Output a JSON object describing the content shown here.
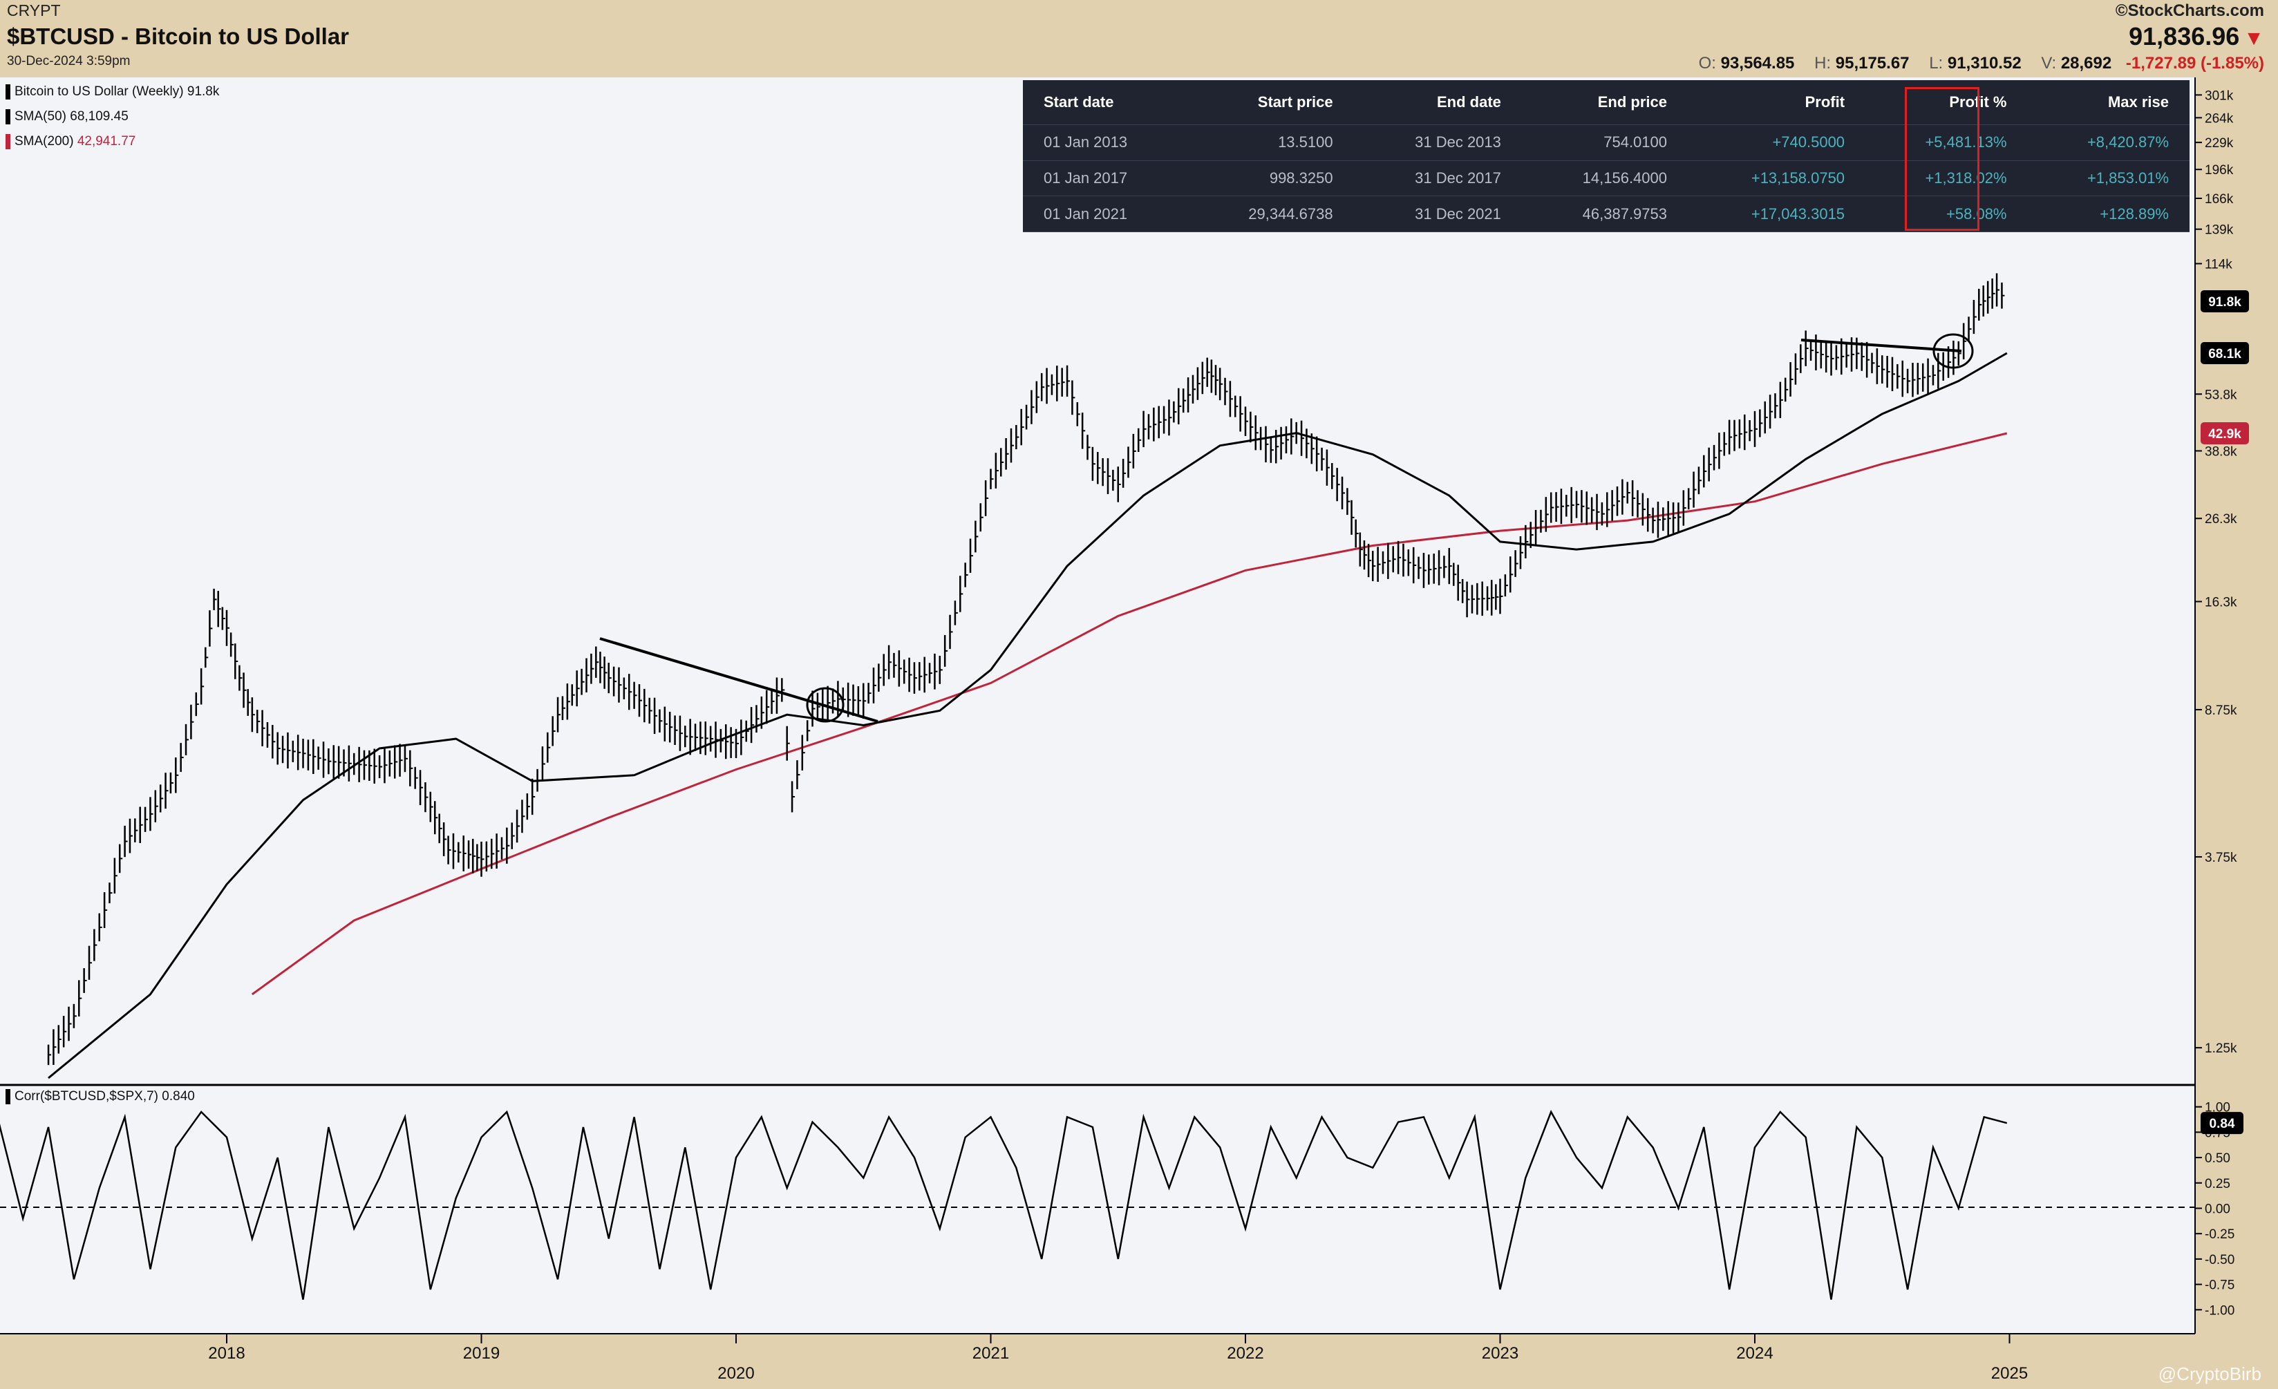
{
  "header": {
    "exchange": "CRYPT",
    "title": "$BTCUSD - Bitcoin to US Dollar",
    "datetime": "30-Dec-2024 3:59pm",
    "brand": "©StockCharts.com",
    "last_price": "91,836.96",
    "ohlcv": {
      "open_label": "O:",
      "open": "93,564.85",
      "high_label": "H:",
      "high": "95,175.67",
      "low_label": "L:",
      "low": "91,310.52",
      "volume_label": "V:",
      "volume": "28,692",
      "change": "-1,727.89 (-1.85%)"
    }
  },
  "legend": {
    "price": "Bitcoin to US Dollar (Weekly) 91.8k",
    "sma50_label": "SMA(50)",
    "sma50_value": "68,109.45",
    "sma200_label": "SMA(200)",
    "sma200_value": "42,941.77",
    "corr_label": "Corr($BTCUSD,$SPX,7)",
    "corr_value": "0.840"
  },
  "table": {
    "headers": [
      "Start date",
      "Start price",
      "End date",
      "End price",
      "Profit",
      "Profit %",
      "Max rise"
    ],
    "rows": [
      [
        "01 Jan 2013",
        "13.5100",
        "31 Dec 2013",
        "754.0100",
        "+740.5000",
        "+5,481.13%",
        "+8,420.87%"
      ],
      [
        "01 Jan 2017",
        "998.3250",
        "31 Dec 2017",
        "14,156.4000",
        "+13,158.0750",
        "+1,318.02%",
        "+1,853.01%"
      ],
      [
        "01 Jan 2021",
        "29,344.6738",
        "31 Dec 2021",
        "46,387.9753",
        "+17,043.3015",
        "+58.08%",
        "+128.89%"
      ]
    ]
  },
  "watermark": "@CryptoBirb",
  "colors": {
    "background": "#e1d1af",
    "plot": "#f3f4f8",
    "price": "#000000",
    "sma50": "#000000",
    "sma200": "#c0243a",
    "table_bg": "#1f2430",
    "positive": "#4fb3bf",
    "negative": "#d31f1f"
  },
  "chart_data": [
    {
      "type": "line",
      "subtype": "ohlc-bars-weekly",
      "title": "$BTCUSD - Bitcoin to US Dollar",
      "scale": "log",
      "x_ticks": [
        "2018",
        "2019",
        "2020",
        "2021",
        "2022",
        "2023",
        "2024",
        "2025"
      ],
      "y_ticks": [
        "301k",
        "264k",
        "229k",
        "196k",
        "166k",
        "139k",
        "114k",
        "53.8k",
        "38.8k",
        "26.3k",
        "16.3k",
        "8.75k",
        "3.75k",
        "1.25k"
      ],
      "price_labels": [
        "91.8k",
        "68.1k",
        "42.9k"
      ],
      "ylim": [
        1050,
        320000
      ],
      "series": [
        {
          "name": "Bitcoin to US Dollar (Weekly)",
          "x": [
            2017.3,
            2017.4,
            2017.5,
            2017.6,
            2017.7,
            2017.8,
            2017.9,
            2017.95,
            2018.0,
            2018.05,
            2018.1,
            2018.2,
            2018.3,
            2018.4,
            2018.5,
            2018.6,
            2018.7,
            2018.8,
            2018.87,
            2018.95,
            2019.0,
            2019.1,
            2019.2,
            2019.3,
            2019.45,
            2019.5,
            2019.6,
            2019.7,
            2019.8,
            2019.9,
            2020.0,
            2020.1,
            2020.18,
            2020.22,
            2020.3,
            2020.4,
            2020.5,
            2020.6,
            2020.7,
            2020.8,
            2020.9,
            2021.0,
            2021.1,
            2021.2,
            2021.3,
            2021.4,
            2021.5,
            2021.6,
            2021.7,
            2021.85,
            2021.9,
            2022.0,
            2022.1,
            2022.2,
            2022.3,
            2022.4,
            2022.45,
            2022.5,
            2022.6,
            2022.7,
            2022.8,
            2022.87,
            2022.95,
            2023.0,
            2023.1,
            2023.2,
            2023.3,
            2023.4,
            2023.5,
            2023.6,
            2023.7,
            2023.8,
            2023.9,
            2024.0,
            2024.1,
            2024.2,
            2024.3,
            2024.4,
            2024.5,
            2024.6,
            2024.7,
            2024.8,
            2024.88,
            2024.95,
            2024.99
          ],
          "values": [
            1200,
            1500,
            2500,
            4100,
            4800,
            6000,
            10000,
            16500,
            14000,
            10500,
            8500,
            7000,
            6800,
            6500,
            6400,
            6300,
            6600,
            5000,
            3900,
            3800,
            3700,
            4000,
            5300,
            8500,
            11500,
            10500,
            9500,
            8200,
            7500,
            7400,
            7200,
            8600,
            9800,
            5300,
            8800,
            9300,
            9200,
            11500,
            10500,
            11000,
            19000,
            33000,
            42000,
            56000,
            58000,
            36000,
            32000,
            44000,
            47000,
            61000,
            57000,
            46000,
            39000,
            43000,
            37000,
            29000,
            22000,
            20000,
            21000,
            19500,
            20000,
            16500,
            16600,
            16800,
            23000,
            28000,
            28500,
            27000,
            30500,
            26000,
            26500,
            34500,
            42000,
            44000,
            52000,
            70000,
            66000,
            68000,
            62000,
            58000,
            60000,
            68000,
            90000,
            98000,
            91800
          ]
        },
        {
          "name": "SMA(50)",
          "x": [
            2017.3,
            2017.7,
            2018.0,
            2018.3,
            2018.6,
            2018.9,
            2019.2,
            2019.6,
            2019.9,
            2020.2,
            2020.5,
            2020.8,
            2021.0,
            2021.3,
            2021.6,
            2021.9,
            2022.2,
            2022.5,
            2022.8,
            2023.0,
            2023.3,
            2023.6,
            2023.9,
            2024.2,
            2024.5,
            2024.8,
            2024.99
          ],
          "values": [
            1050,
            1700,
            3200,
            5200,
            7000,
            7400,
            5800,
            6000,
            7200,
            8500,
            8000,
            8700,
            11000,
            20000,
            30000,
            40000,
            43000,
            38000,
            30000,
            23000,
            22000,
            23000,
            27000,
            37000,
            48000,
            58000,
            68109
          ]
        },
        {
          "name": "SMA(200)",
          "x": [
            2018.1,
            2018.5,
            2019.0,
            2019.5,
            2020.0,
            2020.5,
            2021.0,
            2021.5,
            2022.0,
            2022.5,
            2023.0,
            2023.5,
            2024.0,
            2024.5,
            2024.99
          ],
          "values": [
            1700,
            2600,
            3500,
            4700,
            6200,
            7900,
            10200,
            15000,
            19500,
            22500,
            24500,
            26000,
            29000,
            36000,
            42941
          ]
        }
      ]
    },
    {
      "type": "line",
      "title": "Corr($BTCUSD,$SPX,7)",
      "y_ticks": [
        "1.00",
        "0.75",
        "0.50",
        "0.25",
        "0.00",
        "-0.25",
        "-0.50",
        "-0.75",
        "-1.00"
      ],
      "ylim": [
        -1.1,
        1.1
      ],
      "last_value": "0.84",
      "series": [
        {
          "name": "Corr($BTCUSD,$SPX,7)",
          "x": [
            2017.0,
            2017.1,
            2017.2,
            2017.3,
            2017.4,
            2017.5,
            2017.6,
            2017.7,
            2017.8,
            2017.9,
            2018.0,
            2018.1,
            2018.2,
            2018.3,
            2018.4,
            2018.5,
            2018.6,
            2018.7,
            2018.8,
            2018.9,
            2019.0,
            2019.1,
            2019.2,
            2019.3,
            2019.4,
            2019.5,
            2019.6,
            2019.7,
            2019.8,
            2019.9,
            2020.0,
            2020.1,
            2020.2,
            2020.3,
            2020.4,
            2020.5,
            2020.6,
            2020.7,
            2020.8,
            2020.9,
            2021.0,
            2021.1,
            2021.2,
            2021.3,
            2021.4,
            2021.5,
            2021.6,
            2021.7,
            2021.8,
            2021.9,
            2022.0,
            2022.1,
            2022.2,
            2022.3,
            2022.4,
            2022.5,
            2022.6,
            2022.7,
            2022.8,
            2022.9,
            2023.0,
            2023.1,
            2023.2,
            2023.3,
            2023.4,
            2023.5,
            2023.6,
            2023.7,
            2023.8,
            2023.9,
            2024.0,
            2024.1,
            2024.2,
            2024.3,
            2024.4,
            2024.5,
            2024.6,
            2024.7,
            2024.8,
            2024.9,
            2024.99
          ],
          "values": [
            0.4,
            0.9,
            -0.1,
            0.8,
            -0.7,
            0.2,
            0.9,
            -0.6,
            0.6,
            0.95,
            0.7,
            -0.3,
            0.5,
            -0.9,
            0.8,
            -0.2,
            0.3,
            0.9,
            -0.8,
            0.1,
            0.7,
            0.95,
            0.2,
            -0.7,
            0.8,
            -0.3,
            0.9,
            -0.6,
            0.6,
            -0.8,
            0.5,
            0.9,
            0.2,
            0.85,
            0.6,
            0.3,
            0.9,
            0.5,
            -0.2,
            0.7,
            0.9,
            0.4,
            -0.5,
            0.9,
            0.8,
            -0.5,
            0.9,
            0.2,
            0.9,
            0.6,
            -0.2,
            0.8,
            0.3,
            0.9,
            0.5,
            0.4,
            0.85,
            0.9,
            0.3,
            0.9,
            -0.8,
            0.3,
            0.95,
            0.5,
            0.2,
            0.9,
            0.6,
            0.0,
            0.8,
            -0.8,
            0.6,
            0.95,
            0.7,
            -0.9,
            0.8,
            0.5,
            -0.8,
            0.6,
            0.0,
            0.9,
            0.84
          ]
        }
      ]
    }
  ]
}
